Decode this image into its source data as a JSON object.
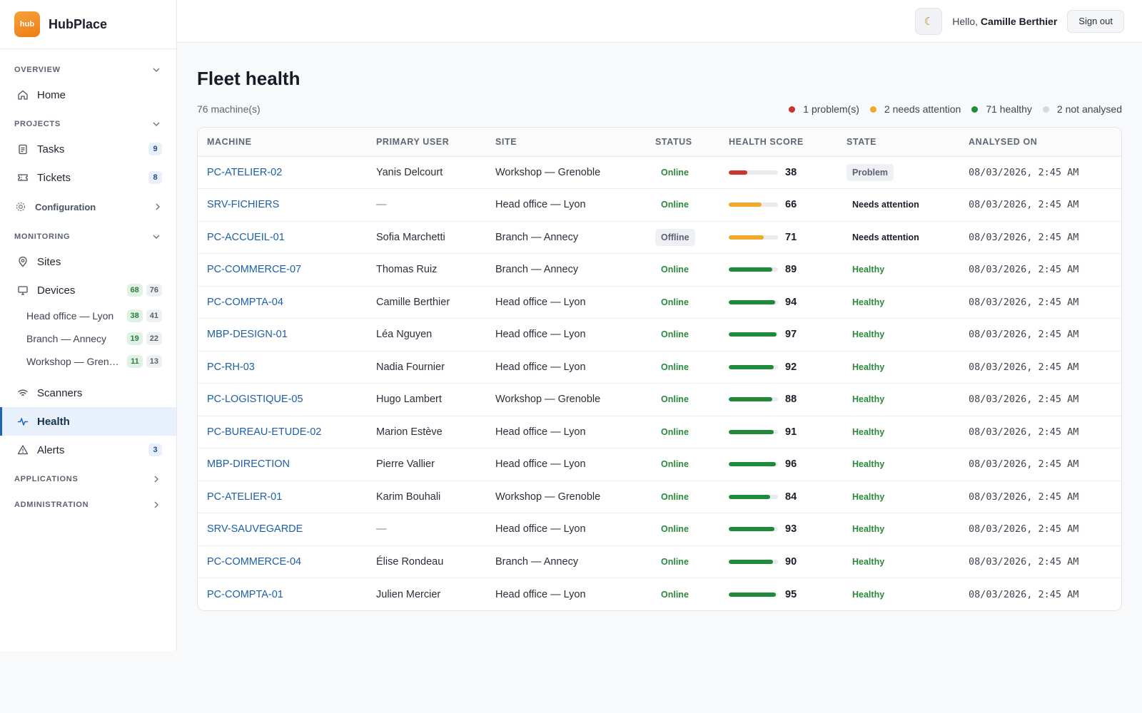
{
  "brand": {
    "logo_text": "hub",
    "name": "HubPlace"
  },
  "sidebar": {
    "sections": {
      "overview": "OVERVIEW",
      "projects": "PROJECTS",
      "monitoring": "MONITORING",
      "applications": "APPLICATIONS",
      "administration": "ADMINISTRATION"
    },
    "home": "Home",
    "tasks": {
      "label": "Tasks",
      "badge": "9"
    },
    "tickets": {
      "label": "Tickets",
      "badge": "8"
    },
    "configuration": "Configuration",
    "sites": "Sites",
    "devices": {
      "label": "Devices",
      "online": "68",
      "total": "76"
    },
    "device_sites": [
      {
        "label": "Head office — Lyon",
        "online": "38",
        "total": "41"
      },
      {
        "label": "Branch — Annecy",
        "online": "19",
        "total": "22"
      },
      {
        "label": "Workshop — Grenoble",
        "online": "11",
        "total": "13"
      }
    ],
    "scanners": "Scanners",
    "health": "Health",
    "alerts": {
      "label": "Alerts",
      "badge": "3"
    }
  },
  "topbar": {
    "theme_icon": "moon-icon",
    "greeting": "Hello,",
    "user_name": "Camille Berthier",
    "signout": "Sign out"
  },
  "page": {
    "title": "Fleet health",
    "machine_count": "76 machine(s)",
    "legend": [
      {
        "label": "1 problem(s)",
        "color": "#c9342f"
      },
      {
        "label": "2 needs attention",
        "color": "#f0a92a"
      },
      {
        "label": "71 healthy",
        "color": "#27893a"
      },
      {
        "label": "2 not analysed",
        "color": "#d5d8dd"
      }
    ]
  },
  "table": {
    "headers": [
      "MACHINE",
      "PRIMARY USER",
      "SITE",
      "STATUS",
      "HEALTH SCORE",
      "STATE",
      "ANALYSED ON"
    ],
    "rows": [
      {
        "machine": "PC-ATELIER-02",
        "user": "Yanis Delcourt",
        "site": "Workshop — Grenoble",
        "status": "Online",
        "score": 38,
        "state": "Problem",
        "analysed": "08/03/2026, 2:45 AM"
      },
      {
        "machine": "SRV-FICHIERS",
        "user": "—",
        "site": "Head office — Lyon",
        "status": "Online",
        "score": 66,
        "state": "Needs attention",
        "analysed": "08/03/2026, 2:45 AM"
      },
      {
        "machine": "PC-ACCUEIL-01",
        "user": "Sofia Marchetti",
        "site": "Branch — Annecy",
        "status": "Offline",
        "score": 71,
        "state": "Needs attention",
        "analysed": "08/03/2026, 2:45 AM"
      },
      {
        "machine": "PC-COMMERCE-07",
        "user": "Thomas Ruiz",
        "site": "Branch — Annecy",
        "status": "Online",
        "score": 89,
        "state": "Healthy",
        "analysed": "08/03/2026, 2:45 AM"
      },
      {
        "machine": "PC-COMPTA-04",
        "user": "Camille Berthier",
        "site": "Head office — Lyon",
        "status": "Online",
        "score": 94,
        "state": "Healthy",
        "analysed": "08/03/2026, 2:45 AM"
      },
      {
        "machine": "MBP-DESIGN-01",
        "user": "Léa Nguyen",
        "site": "Head office — Lyon",
        "status": "Online",
        "score": 97,
        "state": "Healthy",
        "analysed": "08/03/2026, 2:45 AM"
      },
      {
        "machine": "PC-RH-03",
        "user": "Nadia Fournier",
        "site": "Head office — Lyon",
        "status": "Online",
        "score": 92,
        "state": "Healthy",
        "analysed": "08/03/2026, 2:45 AM"
      },
      {
        "machine": "PC-LOGISTIQUE-05",
        "user": "Hugo Lambert",
        "site": "Workshop — Grenoble",
        "status": "Online",
        "score": 88,
        "state": "Healthy",
        "analysed": "08/03/2026, 2:45 AM"
      },
      {
        "machine": "PC-BUREAU-ETUDE-02",
        "user": "Marion Estève",
        "site": "Head office — Lyon",
        "status": "Online",
        "score": 91,
        "state": "Healthy",
        "analysed": "08/03/2026, 2:45 AM"
      },
      {
        "machine": "MBP-DIRECTION",
        "user": "Pierre Vallier",
        "site": "Head office — Lyon",
        "status": "Online",
        "score": 96,
        "state": "Healthy",
        "analysed": "08/03/2026, 2:45 AM"
      },
      {
        "machine": "PC-ATELIER-01",
        "user": "Karim Bouhali",
        "site": "Workshop — Grenoble",
        "status": "Online",
        "score": 84,
        "state": "Healthy",
        "analysed": "08/03/2026, 2:45 AM"
      },
      {
        "machine": "SRV-SAUVEGARDE",
        "user": "—",
        "site": "Head office — Lyon",
        "status": "Online",
        "score": 93,
        "state": "Healthy",
        "analysed": "08/03/2026, 2:45 AM"
      },
      {
        "machine": "PC-COMMERCE-04",
        "user": "Élise Rondeau",
        "site": "Branch — Annecy",
        "status": "Online",
        "score": 90,
        "state": "Healthy",
        "analysed": "08/03/2026, 2:45 AM"
      },
      {
        "machine": "PC-COMPTA-01",
        "user": "Julien Mercier",
        "site": "Head office — Lyon",
        "status": "Online",
        "score": 95,
        "state": "Healthy",
        "analysed": "08/03/2026, 2:45 AM"
      }
    ]
  },
  "colors": {
    "accent": "#1e64b4",
    "score_problem": "#c9342f",
    "score_attention": "#f0a92a",
    "score_healthy": "#1f8a3a"
  }
}
